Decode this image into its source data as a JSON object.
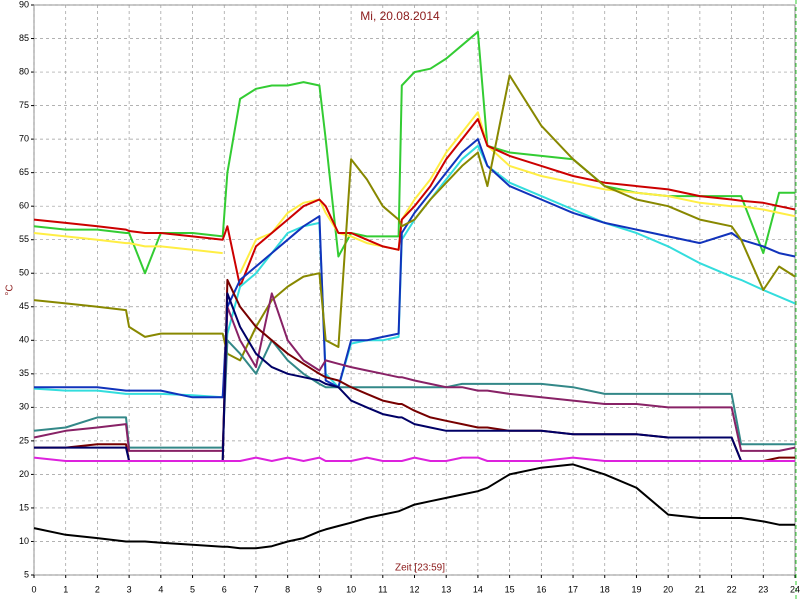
{
  "chart_data": {
    "type": "line",
    "title": "Mi, 20.08.2014",
    "xlabel": "Zeit [23:59]",
    "ylabel": "°C",
    "grid": true,
    "xlim": [
      0,
      24
    ],
    "ylim": [
      5,
      90
    ],
    "xticks": [
      0,
      1,
      2,
      3,
      4,
      5,
      6,
      7,
      8,
      9,
      10,
      11,
      12,
      13,
      14,
      15,
      16,
      17,
      18,
      19,
      20,
      21,
      22,
      23,
      24
    ],
    "yticks": [
      5,
      10,
      15,
      20,
      25,
      30,
      35,
      40,
      45,
      50,
      55,
      60,
      65,
      70,
      75,
      80,
      85,
      90
    ],
    "x": [
      0,
      1,
      2,
      2.9,
      3,
      3.5,
      4,
      5,
      5.95,
      6.1,
      6.5,
      7,
      7.5,
      8,
      8.5,
      9,
      9.2,
      9.6,
      10,
      10.5,
      11,
      11.5,
      11.6,
      12,
      12.5,
      13,
      13.5,
      14,
      14.3,
      15,
      16,
      17,
      18,
      19,
      20,
      21,
      22,
      22.3,
      23,
      23.5,
      24
    ],
    "series": [
      {
        "color": "#33cc33",
        "values": [
          57,
          56.5,
          56.5,
          56,
          56,
          50,
          56,
          56,
          55.5,
          65,
          76,
          77.5,
          78,
          78,
          78.5,
          78,
          70,
          52.5,
          56,
          55.5,
          55.5,
          55.5,
          78,
          80,
          80.5,
          82,
          84,
          86,
          69,
          68,
          67.5,
          67,
          63,
          62,
          61.5,
          61.5,
          61.5,
          61.5,
          53,
          62,
          62
        ]
      },
      {
        "color": "#ffee44",
        "values": [
          56,
          55.5,
          55,
          54.5,
          54.5,
          54,
          54,
          53.5,
          53,
          null,
          50,
          55,
          56,
          59,
          60.5,
          61,
          59,
          56,
          55.5,
          54.5,
          54,
          53.5,
          58,
          61,
          64,
          68,
          71,
          74,
          69,
          66,
          64.5,
          63.5,
          62.5,
          62,
          61.5,
          60.5,
          60,
          60,
          59.5,
          59,
          58.5
        ]
      },
      {
        "color": "#cc0000",
        "values": [
          58,
          57.5,
          57,
          56.5,
          56.3,
          56,
          56,
          55.5,
          55,
          57,
          48,
          54,
          56,
          58,
          60,
          61,
          60,
          56,
          56,
          55,
          54,
          53.5,
          58,
          60,
          63,
          67,
          70,
          73,
          69,
          67.5,
          66,
          64.5,
          63.5,
          63,
          62.5,
          61.5,
          61,
          60.8,
          60.5,
          60,
          59.5
        ]
      },
      {
        "color": "#33dddd",
        "values": [
          32.8,
          32.5,
          32.5,
          32,
          32,
          32,
          32,
          31.8,
          31.5,
          41,
          48,
          50,
          53,
          56,
          57,
          57.5,
          35,
          33,
          39.5,
          40,
          40,
          40.5,
          55,
          58,
          61,
          64,
          67,
          69,
          66,
          63.5,
          61.5,
          59.5,
          57.5,
          56,
          54,
          51.5,
          49.5,
          49,
          47.5,
          46.5,
          45.5
        ]
      },
      {
        "color": "#1133bb",
        "values": [
          33,
          33,
          33,
          32.5,
          32.5,
          32.5,
          32.5,
          31.5,
          31.5,
          45,
          49,
          51,
          53,
          55,
          57,
          58.5,
          34,
          33,
          40,
          40,
          40.5,
          41,
          56,
          59,
          62,
          65,
          68,
          70,
          66,
          63,
          61,
          59,
          57.5,
          56.5,
          55.5,
          54.5,
          56,
          55,
          54,
          53,
          52.5
        ]
      },
      {
        "color": "#888800",
        "values": [
          46,
          45.5,
          45,
          44.5,
          42,
          40.5,
          41,
          41,
          41,
          38,
          37,
          42,
          46,
          48,
          49.5,
          50,
          40,
          39,
          67,
          64,
          60,
          58,
          57,
          58,
          61,
          63.5,
          66,
          68,
          63,
          79.5,
          72,
          67,
          63,
          61,
          60,
          58,
          57,
          55,
          47.5,
          51,
          49.5
        ]
      },
      {
        "color": "#338888",
        "values": [
          26.5,
          27,
          28.5,
          28.5,
          24,
          24,
          24,
          24,
          24,
          40,
          38,
          35,
          40,
          37,
          35,
          33.5,
          33,
          33,
          33,
          33,
          33,
          33,
          33,
          33,
          33,
          33,
          33.5,
          33.5,
          33.5,
          33.5,
          33.5,
          33,
          32,
          32,
          32,
          32,
          32,
          24.5,
          24.5,
          24.5,
          24.5
        ]
      },
      {
        "color": "#882266",
        "values": [
          25.5,
          26.5,
          27,
          27.5,
          23.5,
          23.5,
          23.5,
          23.5,
          23.5,
          45,
          40,
          36,
          47,
          40,
          37,
          35.5,
          37,
          36.5,
          36,
          35.5,
          35,
          34.5,
          34.5,
          34,
          33.5,
          33,
          33,
          32.5,
          32.5,
          32,
          31.5,
          31,
          30.5,
          30.5,
          30,
          30,
          30,
          23.5,
          23.5,
          23.5,
          24
        ]
      },
      {
        "color": "#770000",
        "values": [
          24,
          24,
          24.5,
          24.5,
          22,
          22,
          22,
          22,
          22,
          49,
          45,
          42,
          40,
          38,
          36.5,
          35,
          34.5,
          34,
          33,
          32,
          31,
          30.5,
          30.5,
          29.5,
          28.5,
          28,
          27.5,
          27,
          27,
          26.5,
          26.5,
          26,
          26,
          26,
          25.5,
          25.5,
          25.5,
          22,
          22,
          22.5,
          22.5
        ]
      },
      {
        "color": "#000066",
        "values": [
          24,
          24,
          24,
          24,
          22,
          22,
          22,
          22,
          22,
          47,
          42,
          38,
          36,
          35,
          34.5,
          34,
          33.5,
          33,
          31,
          30,
          29,
          28.5,
          28.5,
          27.5,
          27,
          26.5,
          26.5,
          26.5,
          26.5,
          26.5,
          26.5,
          26,
          26,
          26,
          25.5,
          25.5,
          25.5,
          22,
          22,
          22,
          22
        ]
      },
      {
        "color": "#dd22dd",
        "values": [
          22.5,
          22,
          22,
          22,
          22,
          22,
          22,
          22,
          22,
          22,
          22,
          22.5,
          22,
          22.5,
          22,
          22.5,
          22,
          22,
          22,
          22.5,
          22,
          22,
          22,
          22.5,
          22,
          22,
          22.5,
          22.5,
          22,
          22,
          22,
          22.5,
          22,
          22,
          22,
          22,
          22,
          22,
          22,
          22,
          22
        ]
      },
      {
        "color": "#000000",
        "values": [
          12,
          11,
          10.5,
          10,
          10,
          10,
          9.8,
          9.5,
          9.2,
          9.2,
          9,
          9,
          9.3,
          10,
          10.5,
          11.5,
          11.8,
          12.3,
          12.8,
          13.5,
          14,
          14.5,
          14.7,
          15.5,
          16,
          16.5,
          17,
          17.5,
          18,
          20,
          21,
          21.5,
          20,
          18,
          14,
          13.5,
          13.5,
          13.5,
          13,
          12.5,
          12.5
        ]
      }
    ]
  }
}
